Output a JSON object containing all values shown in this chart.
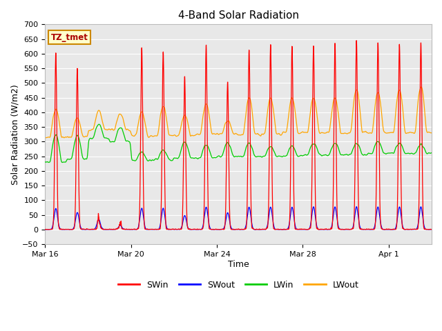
{
  "title": "4-Band Solar Radiation",
  "xlabel": "Time",
  "ylabel": "Solar Radiation (W/m2)",
  "ylim": [
    -50,
    700
  ],
  "background_color": "#ffffff",
  "plot_bg_color": "#e8e8e8",
  "grid_color": "#ffffff",
  "colors": {
    "SWin": "#ff0000",
    "SWout": "#0000ff",
    "LWin": "#00cc00",
    "LWout": "#ffa500"
  },
  "annotation_text": "TZ_tmet",
  "annotation_bg": "#ffffcc",
  "annotation_border": "#cc8800",
  "xtick_labels": [
    "Mar 16",
    "Mar 20",
    "Mar 24",
    "Mar 28",
    "Apr 1"
  ],
  "title_fontsize": 11,
  "axis_label_fontsize": 9,
  "tick_fontsize": 8
}
